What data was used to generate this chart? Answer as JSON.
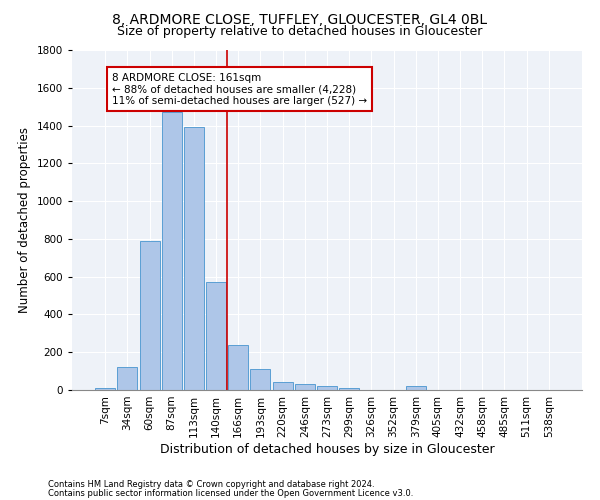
{
  "title1": "8, ARDMORE CLOSE, TUFFLEY, GLOUCESTER, GL4 0BL",
  "title2": "Size of property relative to detached houses in Gloucester",
  "xlabel": "Distribution of detached houses by size in Gloucester",
  "ylabel": "Number of detached properties",
  "footnote1": "Contains HM Land Registry data © Crown copyright and database right 2024.",
  "footnote2": "Contains public sector information licensed under the Open Government Licence v3.0.",
  "bar_labels": [
    "7sqm",
    "34sqm",
    "60sqm",
    "87sqm",
    "113sqm",
    "140sqm",
    "166sqm",
    "193sqm",
    "220sqm",
    "246sqm",
    "273sqm",
    "299sqm",
    "326sqm",
    "352sqm",
    "379sqm",
    "405sqm",
    "432sqm",
    "458sqm",
    "485sqm",
    "511sqm",
    "538sqm"
  ],
  "bar_values": [
    10,
    120,
    790,
    1470,
    1390,
    570,
    240,
    110,
    40,
    30,
    20,
    10,
    0,
    0,
    20,
    0,
    0,
    0,
    0,
    0,
    0
  ],
  "bar_color": "#aec6e8",
  "bar_edge_color": "#5a9fd4",
  "vline_x_index": 5.5,
  "vline_color": "#cc0000",
  "annotation_line1": "8 ARDMORE CLOSE: 161sqm",
  "annotation_line2": "← 88% of detached houses are smaller (4,228)",
  "annotation_line3": "11% of semi-detached houses are larger (527) →",
  "annotation_box_color": "#cc0000",
  "ylim": [
    0,
    1800
  ],
  "yticks": [
    0,
    200,
    400,
    600,
    800,
    1000,
    1200,
    1400,
    1600,
    1800
  ],
  "bg_color": "#eef2f8",
  "grid_color": "#ffffff",
  "title1_fontsize": 10,
  "title2_fontsize": 9,
  "xlabel_fontsize": 9,
  "ylabel_fontsize": 8.5,
  "tick_fontsize": 7.5,
  "annot_fontsize": 7.5
}
